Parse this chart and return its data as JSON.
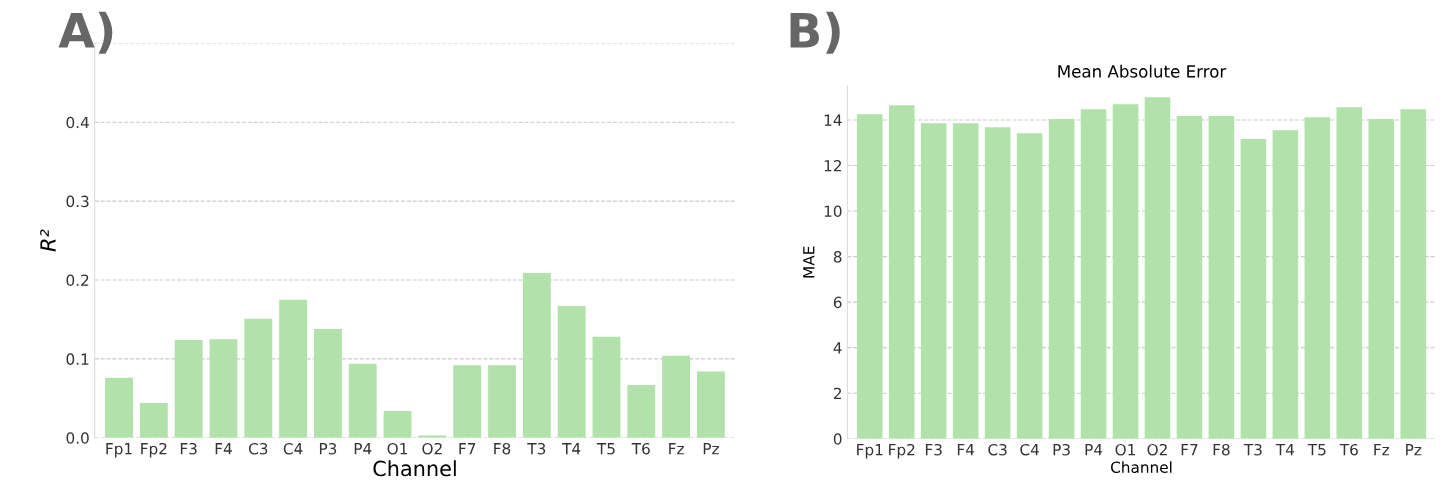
{
  "chart_data": [
    {
      "type": "bar",
      "annotations": [
        "A)"
      ],
      "xlabel": "Channel",
      "ylabel": "R²",
      "categories": [
        "Fp1",
        "Fp2",
        "F3",
        "F4",
        "C3",
        "C4",
        "P3",
        "P4",
        "O1",
        "O2",
        "F7",
        "F8",
        "T3",
        "T4",
        "T5",
        "T6",
        "Fz",
        "Pz"
      ],
      "values": [
        0.076,
        0.044,
        0.124,
        0.125,
        0.151,
        0.175,
        0.138,
        0.094,
        0.034,
        0.003,
        0.092,
        0.092,
        0.209,
        0.167,
        0.128,
        0.067,
        0.104,
        0.084
      ],
      "color": "#b0e2aa",
      "ylim": [
        0,
        0.5
      ],
      "yticks": [
        {
          "value": 0,
          "label": "0.0"
        },
        0.1,
        0.2,
        0.3,
        0.4,
        {
          "value": 0.5,
          "label": null
        }
      ],
      "grid": "y"
    },
    {
      "type": "bar",
      "annotations": [
        "B)"
      ],
      "title": "Mean Absolute Error",
      "xlabel": "Channel",
      "ylabel": "MAE",
      "categories": [
        "Fp1",
        "Fp2",
        "F3",
        "F4",
        "C3",
        "C4",
        "P3",
        "P4",
        "O1",
        "O2",
        "F7",
        "F8",
        "T3",
        "T4",
        "T5",
        "T6",
        "Fz",
        "Pz"
      ],
      "values": [
        14.25,
        14.65,
        13.86,
        13.86,
        13.68,
        13.42,
        14.04,
        14.47,
        14.69,
        15.0,
        14.17,
        14.17,
        13.16,
        13.55,
        14.12,
        14.56,
        14.04,
        14.47
      ],
      "color": "#b0e2aa",
      "ylim": [
        0,
        15.5
      ],
      "yticks": [
        0,
        2,
        4,
        6,
        8,
        10,
        12,
        14
      ],
      "grid": "y"
    }
  ]
}
